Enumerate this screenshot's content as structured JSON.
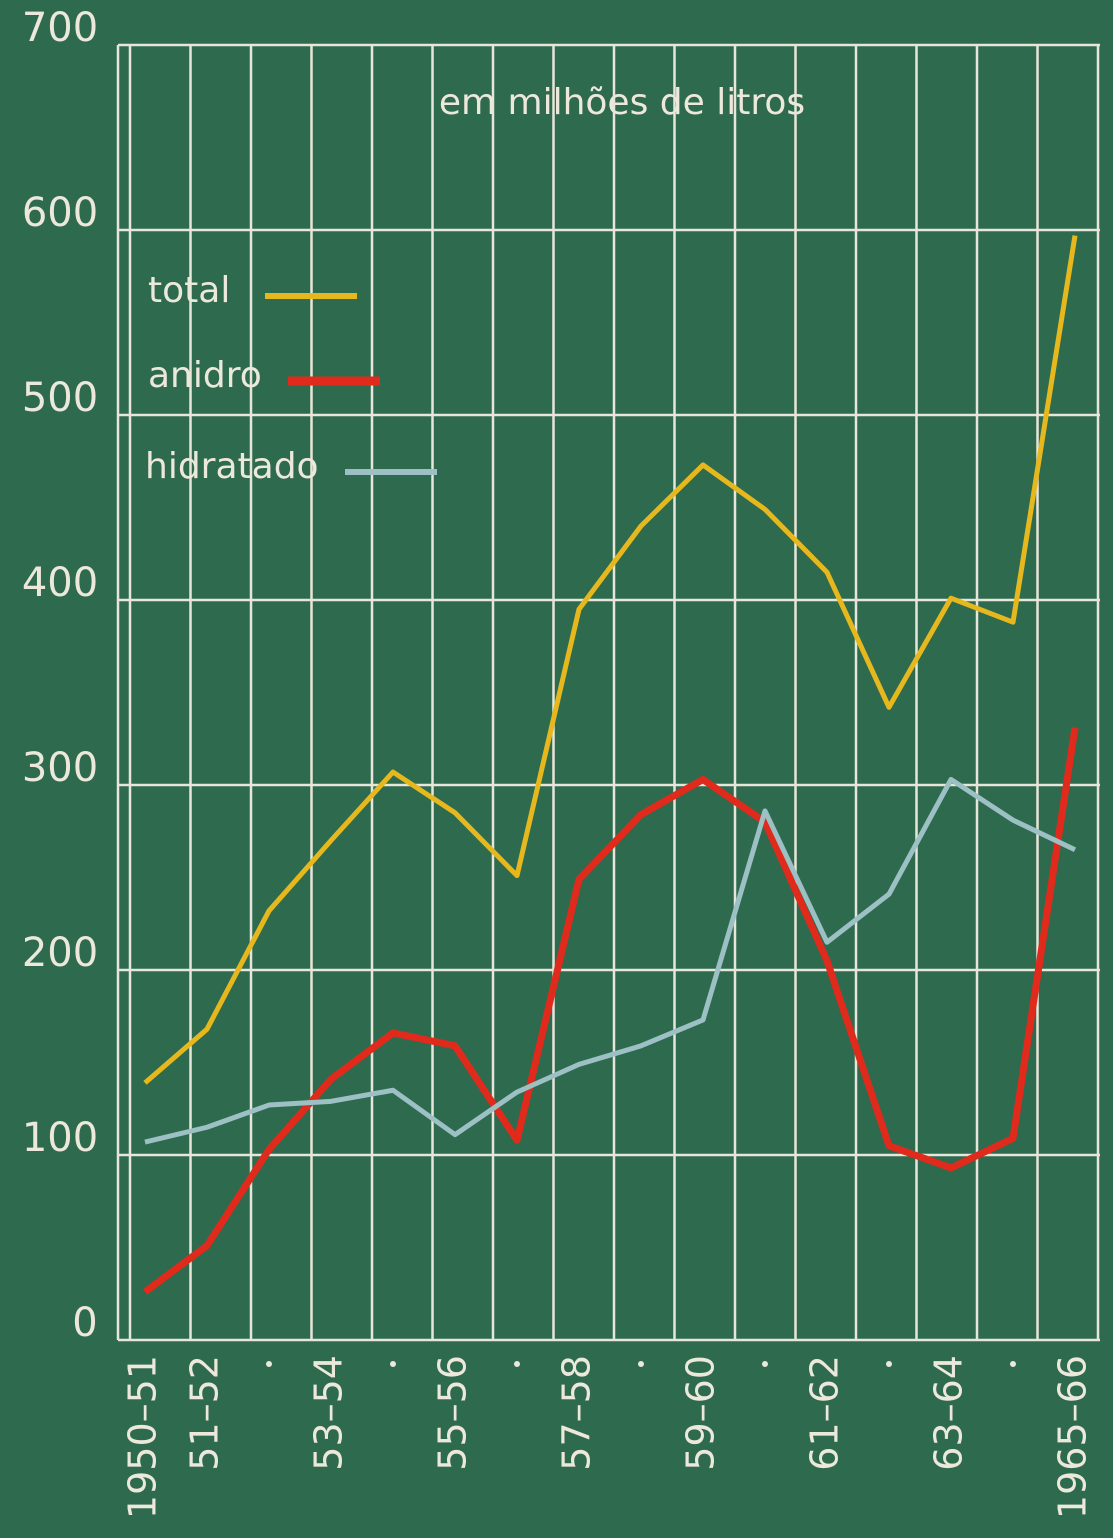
{
  "chart_data": {
    "type": "line",
    "title": "em milhões de litros",
    "categories": [
      "1950–51",
      "51–52",
      null,
      "53–54",
      null,
      "55–56",
      null,
      "57–58",
      null,
      "59–60",
      null,
      "61–62",
      null,
      "63–64",
      null,
      "1965–66"
    ],
    "series": [
      {
        "name": "total",
        "color": "#e6b81e",
        "values": [
          139,
          168,
          232,
          270,
          307,
          285,
          251,
          395,
          440,
          473,
          449,
          415,
          342,
          401,
          388,
          597
        ]
      },
      {
        "name": "anidro",
        "color": "#e02a1c",
        "values": [
          26,
          51,
          103,
          141,
          166,
          159,
          108,
          249,
          284,
          303,
          280,
          205,
          105,
          93,
          109,
          331
        ]
      },
      {
        "name": "hidratado",
        "color": "#9cc0c4",
        "values": [
          107,
          115,
          127,
          129,
          135,
          111,
          134,
          149,
          159,
          173,
          286,
          215,
          241,
          303,
          281,
          265
        ]
      }
    ],
    "ylim": [
      0,
      700
    ],
    "yticks": [
      0,
      100,
      200,
      300,
      400,
      500,
      600,
      700
    ],
    "grid": true,
    "legend": "upper left"
  }
}
